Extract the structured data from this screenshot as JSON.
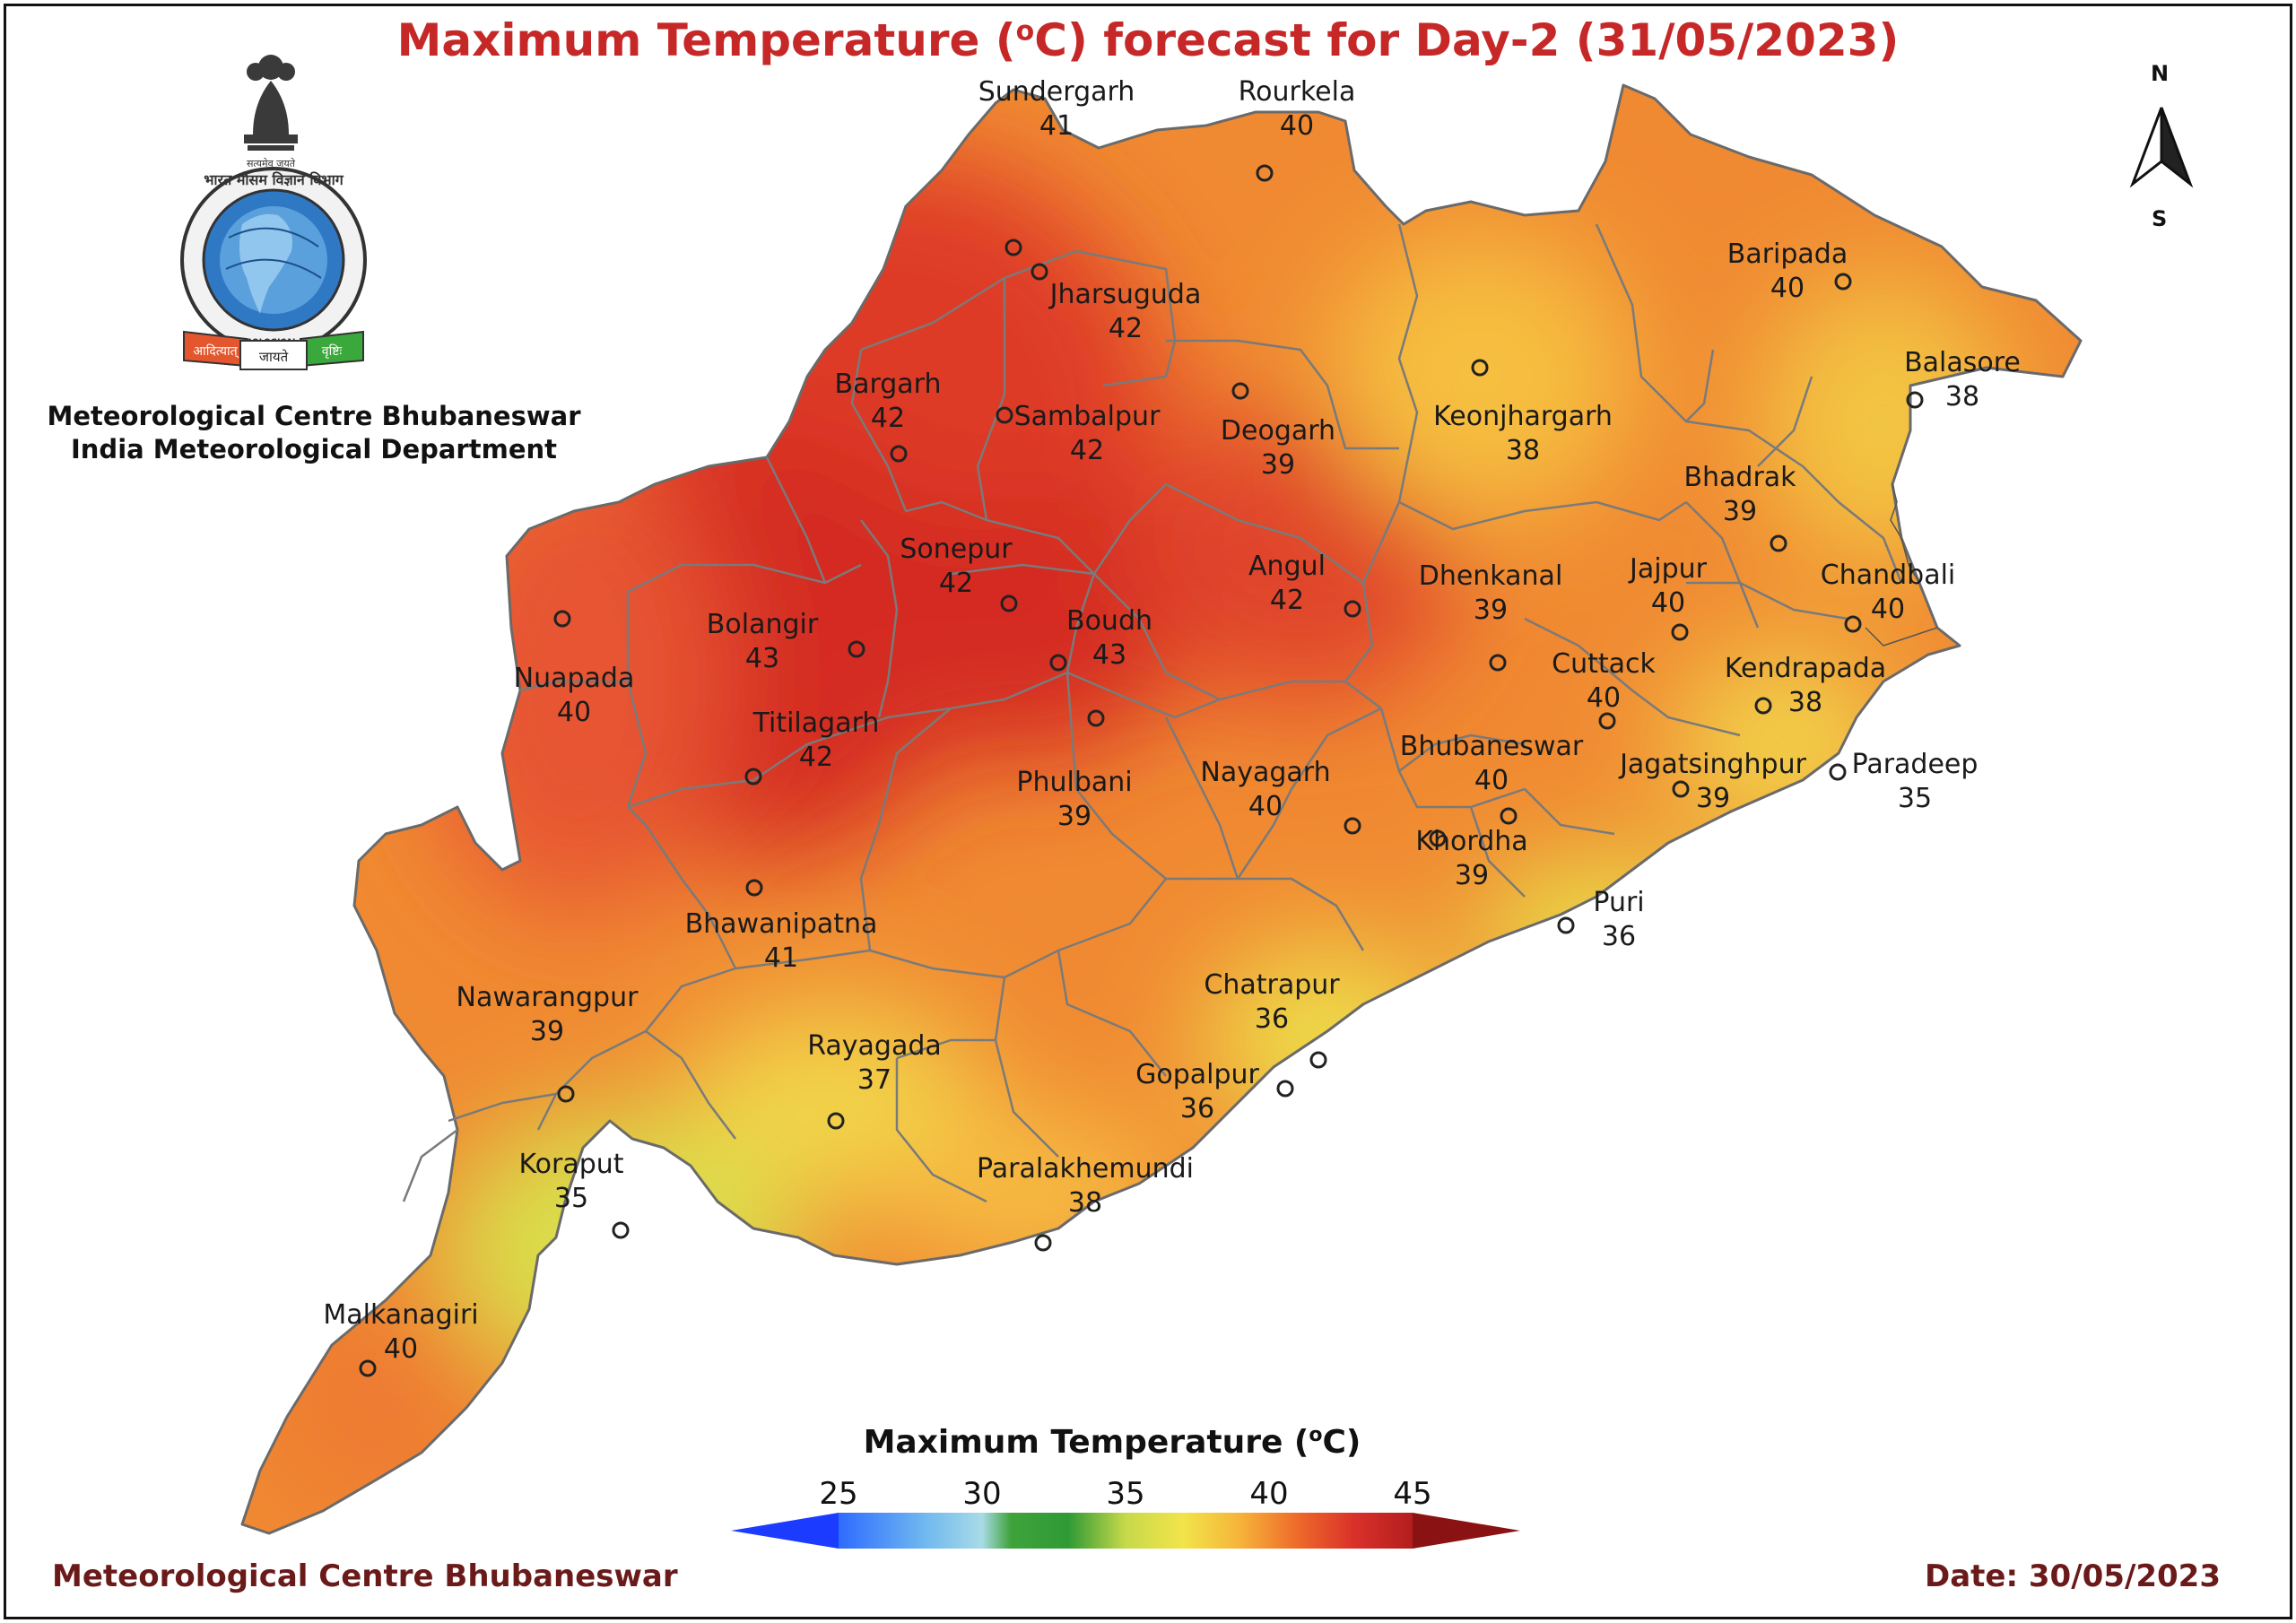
{
  "title": {
    "prefix": "Maximum Temperature (",
    "superscript": "o",
    "suffix": "C) forecast for Day-2 (31/05/2023)"
  },
  "organization": {
    "line1": "Meteorological Centre Bhubaneswar",
    "line2": "India Meteorological Department"
  },
  "logo": {
    "emblem_text": "सत्यमेव जयते",
    "ring_text_top": "भारत मौसम विज्ञान विभाग",
    "ring_text_bottom": "INDIA METEOROLOGICAL DEPARTMENT",
    "banner_left": "आदित्यात्",
    "banner_center": "जायते",
    "banner_right": "वृष्टिः"
  },
  "north_arrow": {
    "n": "N",
    "s": "S"
  },
  "legend": {
    "title_prefix": "Maximum Temperature (",
    "title_superscript": "o",
    "title_suffix": "C)",
    "ticks": [
      "25",
      "30",
      "35",
      "40",
      "45"
    ],
    "range": [
      22,
      48
    ],
    "color_stops": [
      {
        "value": 22,
        "color": "#1b3cff"
      },
      {
        "value": 25,
        "color": "#2f6bff"
      },
      {
        "value": 28,
        "color": "#6fb8f0"
      },
      {
        "value": 30,
        "color": "#a8dbe6"
      },
      {
        "value": 31,
        "color": "#3fa33b"
      },
      {
        "value": 33,
        "color": "#2f9a35"
      },
      {
        "value": 35,
        "color": "#c7d94a"
      },
      {
        "value": 37,
        "color": "#f2e44a"
      },
      {
        "value": 39,
        "color": "#f6b33a"
      },
      {
        "value": 41,
        "color": "#ee6a2a"
      },
      {
        "value": 43,
        "color": "#d9302a"
      },
      {
        "value": 45,
        "color": "#b31e1e"
      },
      {
        "value": 48,
        "color": "#8a1212"
      }
    ]
  },
  "footer": {
    "left": "Meteorological Centre Bhubaneswar",
    "right": "Date: 30/05/2023"
  },
  "colors": {
    "title": "#c62828",
    "footer": "#6b1a1a",
    "district_border": "#7a7a7a",
    "marker": "#222222"
  },
  "stations": [
    {
      "name": "Sundergarh",
      "temp": "41"
    },
    {
      "name": "Rourkela",
      "temp": "40"
    },
    {
      "name": "Jharsuguda",
      "temp": "42"
    },
    {
      "name": "Bargarh",
      "temp": "42"
    },
    {
      "name": "Sambalpur",
      "temp": "42"
    },
    {
      "name": "Deogarh",
      "temp": "39"
    },
    {
      "name": "Keonjhargarh",
      "temp": "38"
    },
    {
      "name": "Baripada",
      "temp": "40"
    },
    {
      "name": "Balasore",
      "temp": "38"
    },
    {
      "name": "Bhadrak",
      "temp": "39"
    },
    {
      "name": "Sonepur",
      "temp": "42"
    },
    {
      "name": "Angul",
      "temp": "42"
    },
    {
      "name": "Dhenkanal",
      "temp": "39"
    },
    {
      "name": "Jajpur",
      "temp": "40"
    },
    {
      "name": "Chandbali",
      "temp": "40"
    },
    {
      "name": "Bolangir",
      "temp": "43"
    },
    {
      "name": "Boudh",
      "temp": "43"
    },
    {
      "name": "Nuapada",
      "temp": "40"
    },
    {
      "name": "Cuttack",
      "temp": "40"
    },
    {
      "name": "Kendrapada",
      "temp": "38"
    },
    {
      "name": "Titilagarh",
      "temp": "42"
    },
    {
      "name": "Bhubaneswar",
      "temp": "40"
    },
    {
      "name": "Jagatsinghpur",
      "temp": "39"
    },
    {
      "name": "Paradeep",
      "temp": "35"
    },
    {
      "name": "Phulbani",
      "temp": "39"
    },
    {
      "name": "Nayagarh",
      "temp": "40"
    },
    {
      "name": "Khordha",
      "temp": "39"
    },
    {
      "name": "Puri",
      "temp": "36"
    },
    {
      "name": "Bhawanipatna",
      "temp": "41"
    },
    {
      "name": "Chatrapur",
      "temp": "36"
    },
    {
      "name": "Nawarangpur",
      "temp": "39"
    },
    {
      "name": "Rayagada",
      "temp": "37"
    },
    {
      "name": "Gopalpur",
      "temp": "36"
    },
    {
      "name": "Koraput",
      "temp": "35"
    },
    {
      "name": "Paralakhemundi",
      "temp": "38"
    },
    {
      "name": "Malkanagiri",
      "temp": "40"
    }
  ]
}
